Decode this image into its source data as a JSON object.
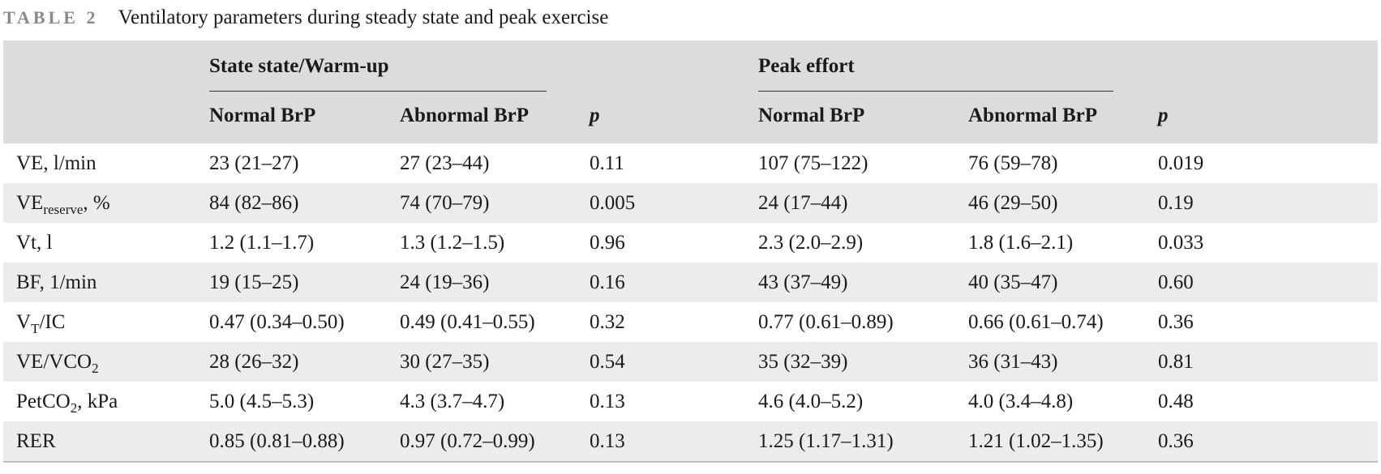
{
  "caption": {
    "label": "TABLE 2",
    "title": "Ventilatory parameters during steady state and peak exercise"
  },
  "header": {
    "group1": "State state/Warm-up",
    "group2": "Peak effort",
    "columns": [
      "Normal BrP",
      "Abnormal BrP",
      "p",
      "Normal BrP",
      "Abnormal BrP",
      "p"
    ]
  },
  "rows": [
    {
      "param": "VE, l/min",
      "ss_normal": "23 (21–27)",
      "ss_abnormal": "27 (23–44)",
      "ss_p": "0.11",
      "pk_normal": "107 (75–122)",
      "pk_abnormal": "76 (59–78)",
      "pk_p": "0.019"
    },
    {
      "param_main": "VE",
      "param_sub": "reserve",
      "param_tail": ", %",
      "ss_normal": "84 (82–86)",
      "ss_abnormal": "74 (70–79)",
      "ss_p": "0.005",
      "pk_normal": "24 (17–44)",
      "pk_abnormal": "46 (29–50)",
      "pk_p": "0.19"
    },
    {
      "param": "Vt, l",
      "ss_normal": "1.2 (1.1–1.7)",
      "ss_abnormal": "1.3 (1.2–1.5)",
      "ss_p": "0.96",
      "pk_normal": "2.3 (2.0–2.9)",
      "pk_abnormal": "1.8 (1.6–2.1)",
      "pk_p": "0.033"
    },
    {
      "param": "BF, 1/min",
      "ss_normal": "19 (15–25)",
      "ss_abnormal": "24 (19–36)",
      "ss_p": "0.16",
      "pk_normal": "43 (37–49)",
      "pk_abnormal": "40 (35–47)",
      "pk_p": "0.60"
    },
    {
      "param_main": "V",
      "param_sub": "T",
      "param_tail": "/IC",
      "ss_normal": "0.47 (0.34–0.50)",
      "ss_abnormal": "0.49 (0.41–0.55)",
      "ss_p": "0.32",
      "pk_normal": "0.77 (0.61–0.89)",
      "pk_abnormal": "0.66 (0.61–0.74)",
      "pk_p": "0.36"
    },
    {
      "param_main": "VE/VCO",
      "param_sub": "2",
      "param_tail": "",
      "ss_normal": "28 (26–32)",
      "ss_abnormal": "30 (27–35)",
      "ss_p": "0.54",
      "pk_normal": "35 (32–39)",
      "pk_abnormal": "36 (31–43)",
      "pk_p": "0.81"
    },
    {
      "param_main": "PetCO",
      "param_sub": "2",
      "param_tail": ", kPa",
      "ss_normal": "5.0 (4.5–5.3)",
      "ss_abnormal": "4.3 (3.7–4.7)",
      "ss_p": "0.13",
      "pk_normal": "4.6 (4.0–5.2)",
      "pk_abnormal": "4.0 (3.4–4.8)",
      "pk_p": "0.48"
    },
    {
      "param": "RER",
      "ss_normal": "0.85 (0.81–0.88)",
      "ss_abnormal": "0.97 (0.72–0.99)",
      "ss_p": "0.13",
      "pk_normal": "1.25 (1.17–1.31)",
      "pk_abnormal": "1.21 (1.02–1.35)",
      "pk_p": "0.36"
    }
  ],
  "colors": {
    "header_bg": "#dcdcdc",
    "alt_row_bg": "#ececec",
    "label_gray": "#8a8a8a"
  }
}
